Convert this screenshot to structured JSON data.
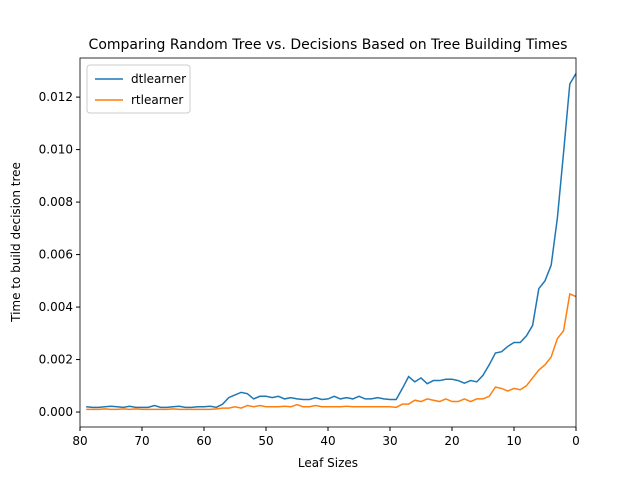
{
  "chart_data": {
    "type": "line",
    "title": "Comparing Random Tree vs. Decisions Based on Tree Building Times",
    "x_label": "Leaf Sizes",
    "y_label": "Time to build decision tree",
    "x": [
      79,
      78,
      77,
      76,
      75,
      74,
      73,
      72,
      71,
      70,
      69,
      68,
      67,
      66,
      65,
      64,
      63,
      62,
      61,
      60,
      59,
      58,
      57,
      56,
      55,
      54,
      53,
      52,
      51,
      50,
      49,
      48,
      47,
      46,
      45,
      44,
      43,
      42,
      41,
      40,
      39,
      38,
      37,
      36,
      35,
      34,
      33,
      32,
      31,
      30,
      29,
      28,
      27,
      26,
      25,
      24,
      23,
      22,
      21,
      20,
      19,
      18,
      17,
      16,
      15,
      14,
      13,
      12,
      11,
      10,
      9,
      8,
      7,
      6,
      5,
      4,
      3,
      2,
      1,
      0
    ],
    "series": [
      {
        "name": "dtlearner",
        "color": "#1f77b4",
        "values": [
          0.0002,
          0.00018,
          0.00018,
          0.0002,
          0.00022,
          0.0002,
          0.00018,
          0.00022,
          0.00018,
          0.00018,
          0.00018,
          0.00025,
          0.00018,
          0.00018,
          0.0002,
          0.00022,
          0.00018,
          0.00018,
          0.0002,
          0.0002,
          0.00022,
          0.00018,
          0.0003,
          0.00055,
          0.00065,
          0.00075,
          0.0007,
          0.0005,
          0.0006,
          0.0006,
          0.00055,
          0.0006,
          0.0005,
          0.00055,
          0.0005,
          0.00048,
          0.00048,
          0.00055,
          0.00048,
          0.0005,
          0.0006,
          0.0005,
          0.00055,
          0.0005,
          0.0006,
          0.0005,
          0.0005,
          0.00055,
          0.0005,
          0.00048,
          0.00048,
          0.0009,
          0.00135,
          0.00115,
          0.0013,
          0.00108,
          0.0012,
          0.0012,
          0.00125,
          0.00125,
          0.0012,
          0.0011,
          0.0012,
          0.00115,
          0.0014,
          0.0018,
          0.00225,
          0.0023,
          0.0025,
          0.00265,
          0.00265,
          0.0029,
          0.0033,
          0.0047,
          0.005,
          0.0056,
          0.0074,
          0.0099,
          0.0125,
          0.0129
        ]
      },
      {
        "name": "rtlearner",
        "color": "#ff7f0e",
        "values": [
          0.0001,
          0.0001,
          0.0001,
          0.00012,
          0.0001,
          0.0001,
          0.00012,
          0.0001,
          0.00012,
          0.0001,
          0.0001,
          0.0001,
          0.0001,
          0.0001,
          0.00012,
          0.0001,
          0.0001,
          0.0001,
          0.0001,
          0.0001,
          0.0001,
          0.00012,
          0.00015,
          0.00015,
          0.0002,
          0.00015,
          0.00025,
          0.0002,
          0.00025,
          0.0002,
          0.0002,
          0.0002,
          0.00022,
          0.0002,
          0.00028,
          0.0002,
          0.0002,
          0.00025,
          0.0002,
          0.0002,
          0.0002,
          0.0002,
          0.00022,
          0.0002,
          0.0002,
          0.0002,
          0.0002,
          0.0002,
          0.0002,
          0.0002,
          0.00018,
          0.0003,
          0.0003,
          0.00045,
          0.0004,
          0.0005,
          0.00045,
          0.0004,
          0.0005,
          0.0004,
          0.0004,
          0.0005,
          0.0004,
          0.0005,
          0.0005,
          0.0006,
          0.00095,
          0.0009,
          0.0008,
          0.0009,
          0.00085,
          0.001,
          0.0013,
          0.0016,
          0.0018,
          0.0021,
          0.0028,
          0.0031,
          0.0045,
          0.0044
        ]
      }
    ],
    "xlim": [
      80,
      0
    ],
    "ylim": [
      -0.00057,
      0.01349
    ],
    "xticks": [
      80,
      70,
      60,
      50,
      40,
      30,
      20,
      10,
      0
    ],
    "yticks": [
      {
        "value": 0,
        "label": "0.000"
      },
      {
        "value": 0.002,
        "label": "0.002"
      },
      {
        "value": 0.004,
        "label": "0.004"
      },
      {
        "value": 0.006,
        "label": "0.006"
      },
      {
        "value": 0.008,
        "label": "0.008"
      },
      {
        "value": 0.01,
        "label": "0.010"
      },
      {
        "value": 0.012,
        "label": "0.012"
      }
    ],
    "grid": false,
    "legend": "upper left"
  }
}
